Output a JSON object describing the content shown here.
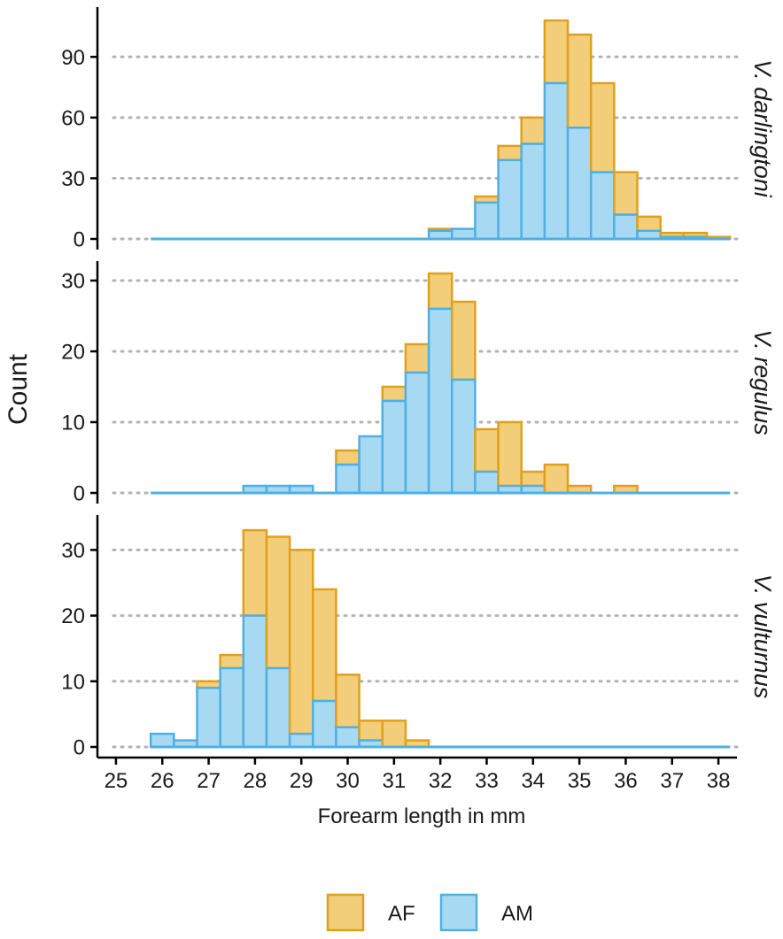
{
  "chart_data": {
    "type": "bar",
    "subtype": "stacked-histogram-faceted",
    "xlabel": "Forearm length in mm",
    "ylabel": "Count",
    "x_ticks": [
      25,
      26,
      27,
      28,
      29,
      30,
      31,
      32,
      33,
      34,
      35,
      36,
      37,
      38
    ],
    "xlim": [
      24.6,
      38.4
    ],
    "bin_width": 0.5,
    "bin_starts": [
      25.75,
      26.25,
      26.75,
      27.25,
      27.75,
      28.25,
      28.75,
      29.25,
      29.75,
      30.25,
      30.75,
      31.25,
      31.75,
      32.25,
      32.75,
      33.25,
      33.75,
      34.25,
      34.75,
      35.25,
      35.75,
      36.25,
      36.75,
      37.25,
      37.75
    ],
    "gridlines": "horizontal dotted",
    "legend": {
      "position": "bottom",
      "entries": [
        {
          "label": "AF",
          "fill": "#F2CE7A",
          "stroke": "#E0A01C"
        },
        {
          "label": "AM",
          "fill": "#A8D9F3",
          "stroke": "#4FB0E3"
        }
      ]
    },
    "facets": [
      {
        "label": "V. darlingtoni",
        "ylim": [
          0,
          112
        ],
        "y_ticks": [
          0,
          30,
          60,
          90
        ],
        "series": [
          {
            "name": "AM",
            "values": [
              0,
              0,
              0,
              0,
              0,
              0,
              0,
              0,
              0,
              0,
              0,
              0,
              4,
              5,
              18,
              39,
              47,
              77,
              55,
              33,
              12,
              4,
              1,
              1,
              0
            ]
          },
          {
            "name": "AF",
            "values": [
              0,
              0,
              0,
              0,
              0,
              0,
              0,
              0,
              0,
              0,
              0,
              0,
              1,
              0,
              3,
              7,
              13,
              31,
              46,
              44,
              21,
              7,
              2,
              2,
              1
            ]
          }
        ]
      },
      {
        "label": "V. regulus",
        "ylim": [
          0,
          32
        ],
        "y_ticks": [
          0,
          10,
          20,
          30
        ],
        "series": [
          {
            "name": "AM",
            "values": [
              0,
              0,
              0,
              0,
              1,
              1,
              1,
              0,
              4,
              8,
              13,
              17,
              26,
              16,
              3,
              1,
              1,
              0,
              0,
              0,
              0,
              0,
              0,
              0,
              0
            ]
          },
          {
            "name": "AF",
            "values": [
              0,
              0,
              0,
              0,
              0,
              0,
              0,
              0,
              2,
              0,
              2,
              4,
              5,
              11,
              6,
              9,
              2,
              4,
              1,
              0,
              1,
              0,
              0,
              0,
              0
            ]
          }
        ]
      },
      {
        "label": "V. vulturnus",
        "ylim": [
          0,
          34.5
        ],
        "y_ticks": [
          0,
          10,
          20,
          30
        ],
        "series": [
          {
            "name": "AM",
            "values": [
              2,
              1,
              9,
              12,
              20,
              12,
              2,
              7,
              3,
              1,
              0,
              0,
              0,
              0,
              0,
              0,
              0,
              0,
              0,
              0,
              0,
              0,
              0,
              0,
              0
            ]
          },
          {
            "name": "AF",
            "values": [
              0,
              0,
              1,
              2,
              13,
              20,
              28,
              17,
              8,
              3,
              4,
              1,
              0,
              0,
              0,
              0,
              0,
              0,
              0,
              0,
              0,
              0,
              0,
              0,
              0
            ]
          }
        ]
      }
    ]
  }
}
